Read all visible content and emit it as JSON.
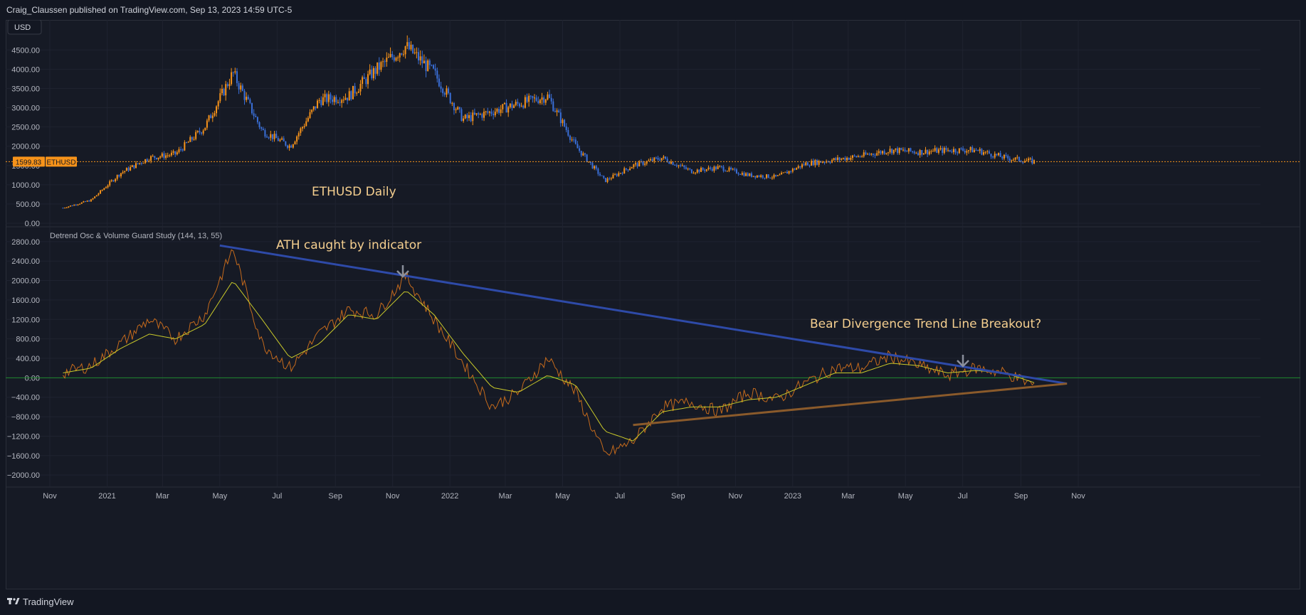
{
  "header": {
    "published_line": "Craig_Claussen published on TradingView.com, Sep 13, 2023 14:59 UTC-5"
  },
  "footer": {
    "brand": "TradingView",
    "logo_icon": "tradingview-logo-icon"
  },
  "price_pane": {
    "currency_button": "USD",
    "symbol": "ETHUSD",
    "last_price_label": "1599.83",
    "title_annotation": "ETHUSD Daily",
    "y_ticks": [
      "4500.00",
      "4000.00",
      "3500.00",
      "3000.00",
      "2500.00",
      "2000.00",
      "1500.00",
      "1000.00",
      "500.00",
      "0.00"
    ]
  },
  "osc_pane": {
    "study_title": "Detrend Osc & Volume Guard Study (144, 13, 55)",
    "annotation_ath": "ATH caught by indicator",
    "annotation_breakout": "Bear Divergence Trend Line Breakout?",
    "y_ticks": [
      "2800.00",
      "2400.00",
      "2000.00",
      "1600.00",
      "1200.00",
      "800.00",
      "400.00",
      "0.00",
      "−400.00",
      "−800.00",
      "−1200.00",
      "−1600.00",
      "−2000.00"
    ]
  },
  "x_axis": {
    "labels": [
      "Nov",
      "2021",
      "Mar",
      "May",
      "Jul",
      "Sep",
      "Nov",
      "2022",
      "Mar",
      "May",
      "Jul",
      "Sep",
      "Nov",
      "2023",
      "Mar",
      "May",
      "Jul",
      "Sep",
      "Nov"
    ]
  },
  "colors": {
    "bull": "#f7931a",
    "bear": "#3a6fd8",
    "osc": "#c56a1c",
    "signal": "#c8c82a",
    "zero_line": "#1f8a2e",
    "trend_blue": "#2e4aa8",
    "trend_brown": "#8a5a2b",
    "annotation": "#f5cf8f",
    "arrow": "#8a8f9c"
  },
  "chart_data": [
    {
      "type": "line",
      "title": "ETHUSD Daily",
      "ylim": [
        0,
        4800
      ],
      "x": [
        "2020-11",
        "2020-12",
        "2021-01",
        "2021-02",
        "2021-03",
        "2021-04",
        "2021-05",
        "2021-06",
        "2021-07",
        "2021-08",
        "2021-09",
        "2021-10",
        "2021-11",
        "2021-12",
        "2022-01",
        "2022-02",
        "2022-03",
        "2022-04",
        "2022-05",
        "2022-06",
        "2022-07",
        "2022-08",
        "2022-09",
        "2022-10",
        "2022-11",
        "2022-12",
        "2023-01",
        "2023-02",
        "2023-03",
        "2023-04",
        "2023-05",
        "2023-06",
        "2023-07",
        "2023-08",
        "2023-09"
      ],
      "series": [
        {
          "values": [
            400,
            600,
            1300,
            1700,
            1800,
            2500,
            3900,
            2400,
            2000,
            3200,
            3300,
            4000,
            4600,
            3900,
            2700,
            2900,
            3100,
            3300,
            2000,
            1100,
            1500,
            1700,
            1350,
            1450,
            1250,
            1200,
            1550,
            1650,
            1750,
            1900,
            1850,
            1900,
            1900,
            1700,
            1599.83
          ]
        }
      ]
    },
    {
      "type": "line",
      "title": "Detrend Osc & Volume Guard Study (144, 13, 55)",
      "ylim": [
        -2100,
        2900
      ],
      "x": [
        "2020-11",
        "2020-12",
        "2021-01",
        "2021-02",
        "2021-03",
        "2021-04",
        "2021-05",
        "2021-06",
        "2021-07",
        "2021-08",
        "2021-09",
        "2021-10",
        "2021-11",
        "2021-12",
        "2022-01",
        "2022-02",
        "2022-03",
        "2022-04",
        "2022-05",
        "2022-06",
        "2022-07",
        "2022-08",
        "2022-09",
        "2022-10",
        "2022-11",
        "2022-12",
        "2023-01",
        "2023-02",
        "2023-03",
        "2023-04",
        "2023-05",
        "2023-06",
        "2023-07",
        "2023-08",
        "2023-09"
      ],
      "series": [
        {
          "values": [
            100,
            250,
            700,
            1200,
            800,
            1300,
            2650,
            700,
            200,
            900,
            1400,
            1300,
            2100,
            1200,
            300,
            -600,
            -300,
            400,
            -300,
            -1600,
            -1300,
            -600,
            -500,
            -700,
            -300,
            -450,
            -100,
            200,
            200,
            450,
            250,
            50,
            200,
            100,
            -150
          ]
        },
        {
          "values": [
            100,
            200,
            600,
            900,
            800,
            1100,
            2000,
            1200,
            400,
            700,
            1300,
            1200,
            1800,
            1300,
            500,
            -200,
            -300,
            50,
            -150,
            -1100,
            -1300,
            -700,
            -600,
            -600,
            -450,
            -400,
            -150,
            100,
            100,
            300,
            250,
            100,
            150,
            100,
            -100
          ]
        }
      ],
      "trend_lines": [
        {
          "from": [
            "2021-05-01",
            2720
          ],
          "to": [
            "2023-10-20",
            -120
          ]
        },
        {
          "from": [
            "2022-07-15",
            -970
          ],
          "to": [
            "2023-10-20",
            -120
          ]
        }
      ]
    }
  ]
}
